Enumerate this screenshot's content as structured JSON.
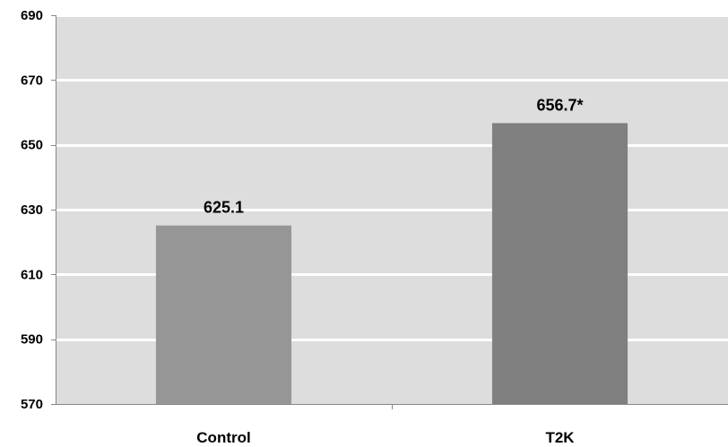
{
  "chart_data": {
    "type": "bar",
    "categories": [
      "Control",
      "T2K"
    ],
    "values": [
      625.1,
      656.7
    ],
    "data_labels": [
      "625.1",
      "656.7*"
    ],
    "title": "",
    "xlabel": "",
    "ylabel": "",
    "ylim": [
      570,
      690
    ],
    "yticks": [
      570,
      590,
      610,
      630,
      650,
      670,
      690
    ],
    "ytick_labels": [
      "570",
      "590",
      "610",
      "630",
      "650",
      "670",
      "690"
    ],
    "grid": true,
    "legend": "none",
    "bar_colors": [
      "#969696",
      "#808080"
    ],
    "plot_background": "#dddddd",
    "gridline_color": "#ffffff",
    "axis_color": "#888888"
  }
}
